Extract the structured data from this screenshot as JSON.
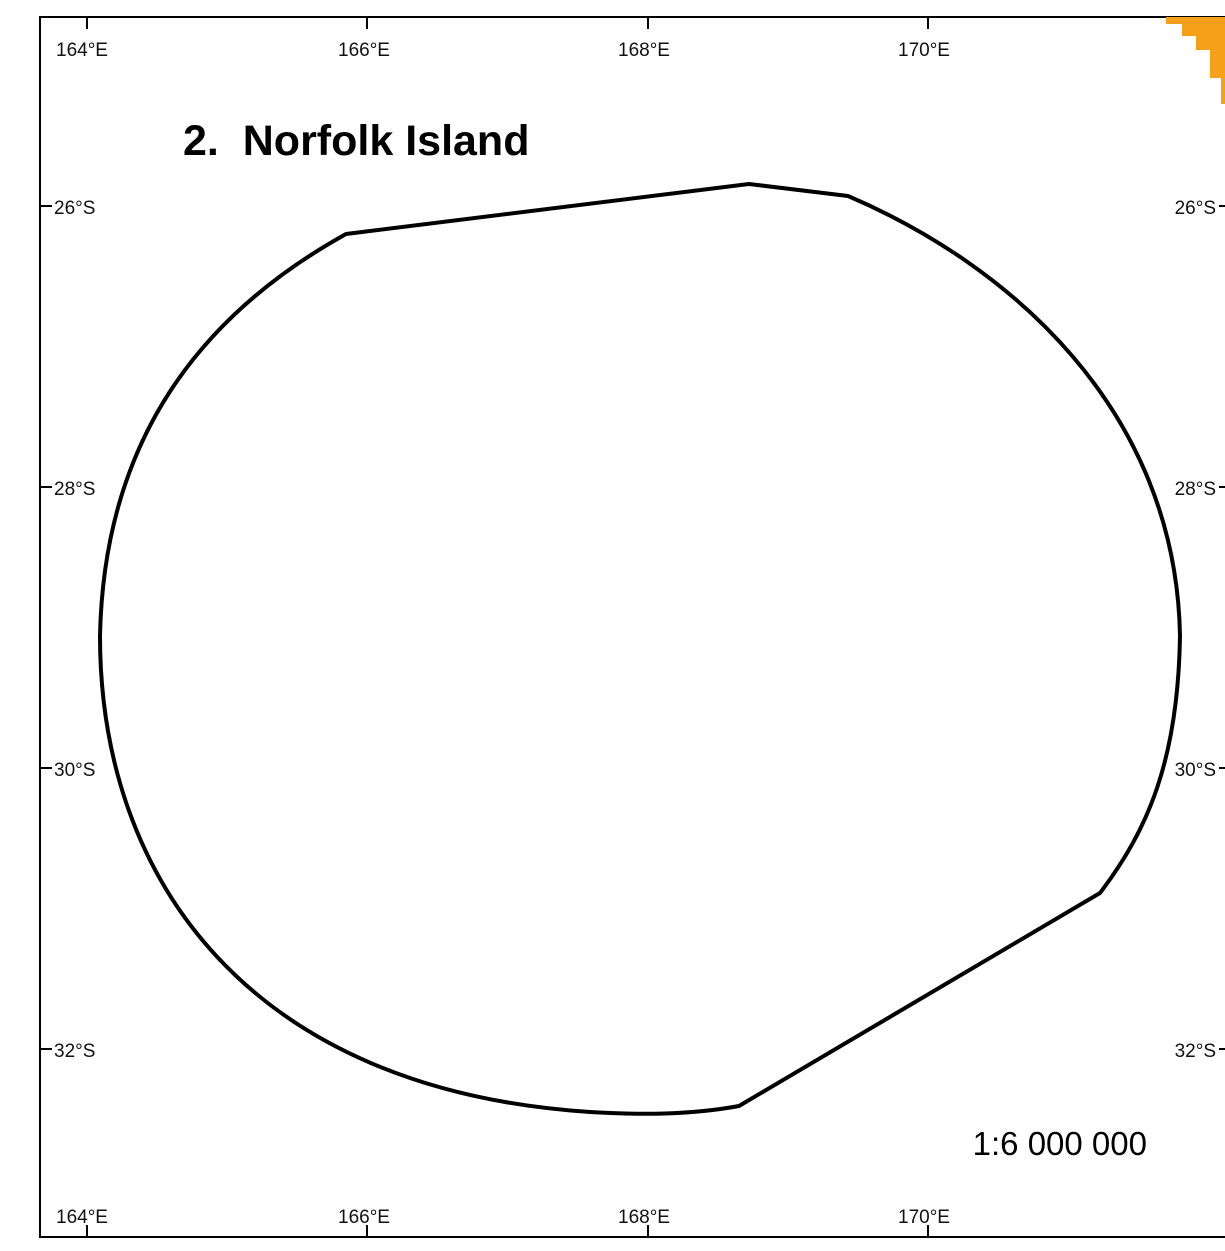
{
  "map": {
    "title": "2.  Norfolk Island",
    "scale": "1:6 000 000",
    "longitude_labels": [
      "164°E",
      "166°E",
      "168°E",
      "170°E"
    ],
    "latitude_labels": [
      "26°S",
      "28°S",
      "30°S",
      "32°S"
    ],
    "colors": {
      "frame": "#000000",
      "boundary": "#000000",
      "adjacent_area": "#f7a11a"
    }
  }
}
